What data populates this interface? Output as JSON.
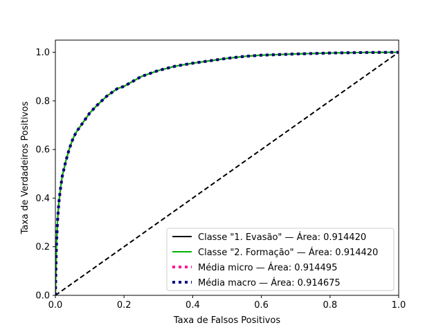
{
  "chart_data": {
    "type": "line",
    "title": "",
    "xlabel": "Taxa de Falsos Positivos",
    "ylabel": "Taxa de Verdadeiros Positivos",
    "xlim": [
      0.0,
      1.0
    ],
    "ylim": [
      0.0,
      1.05
    ],
    "xticks": [
      "0.0",
      "0.2",
      "0.4",
      "0.6",
      "0.8",
      "1.0"
    ],
    "yticks": [
      "0.0",
      "0.2",
      "0.4",
      "0.6",
      "0.8",
      "1.0"
    ],
    "grid": false,
    "legend_position": "lower-right",
    "series": [
      {
        "name": "Classe \"1. Evasão\" — Área: 0.914420",
        "color": "#000000",
        "style": "solid",
        "x": [
          0.0,
          0.003,
          0.006,
          0.01,
          0.015,
          0.02,
          0.03,
          0.04,
          0.05,
          0.06,
          0.08,
          0.1,
          0.12,
          0.15,
          0.18,
          0.2,
          0.25,
          0.3,
          0.35,
          0.4,
          0.45,
          0.5,
          0.55,
          0.6,
          0.7,
          0.8,
          0.9,
          1.0
        ],
        "y": [
          0.0,
          0.2,
          0.3,
          0.38,
          0.44,
          0.49,
          0.55,
          0.6,
          0.64,
          0.67,
          0.71,
          0.75,
          0.78,
          0.82,
          0.85,
          0.86,
          0.9,
          0.925,
          0.943,
          0.955,
          0.965,
          0.975,
          0.983,
          0.988,
          0.993,
          0.997,
          0.999,
          1.0
        ]
      },
      {
        "name": "Classe \"2. Formação\" — Área: 0.914420",
        "color": "#00b300",
        "style": "solid",
        "x": [
          0.0,
          0.003,
          0.006,
          0.01,
          0.015,
          0.02,
          0.03,
          0.04,
          0.05,
          0.06,
          0.08,
          0.1,
          0.12,
          0.15,
          0.18,
          0.2,
          0.25,
          0.3,
          0.35,
          0.4,
          0.45,
          0.5,
          0.55,
          0.6,
          0.7,
          0.8,
          0.9,
          1.0
        ],
        "y": [
          0.0,
          0.2,
          0.3,
          0.38,
          0.44,
          0.49,
          0.55,
          0.6,
          0.64,
          0.67,
          0.71,
          0.75,
          0.78,
          0.82,
          0.85,
          0.86,
          0.9,
          0.925,
          0.943,
          0.955,
          0.965,
          0.975,
          0.983,
          0.988,
          0.993,
          0.997,
          0.999,
          1.0
        ]
      },
      {
        "name": "Média micro — Área: 0.914495",
        "color": "#ff1493",
        "style": "dotted",
        "x": [
          0.0,
          0.003,
          0.006,
          0.01,
          0.015,
          0.02,
          0.03,
          0.04,
          0.05,
          0.06,
          0.08,
          0.1,
          0.12,
          0.15,
          0.18,
          0.2,
          0.25,
          0.3,
          0.35,
          0.4,
          0.45,
          0.5,
          0.55,
          0.6,
          0.7,
          0.8,
          0.9,
          1.0
        ],
        "y": [
          0.0,
          0.2,
          0.3,
          0.38,
          0.44,
          0.49,
          0.55,
          0.6,
          0.64,
          0.67,
          0.71,
          0.75,
          0.78,
          0.82,
          0.85,
          0.86,
          0.9,
          0.925,
          0.943,
          0.955,
          0.965,
          0.975,
          0.983,
          0.988,
          0.993,
          0.997,
          0.999,
          1.0
        ]
      },
      {
        "name": "Média macro — Área: 0.914675",
        "color": "#000080",
        "style": "dotted",
        "x": [
          0.0,
          0.003,
          0.006,
          0.01,
          0.015,
          0.02,
          0.03,
          0.04,
          0.05,
          0.06,
          0.08,
          0.1,
          0.12,
          0.15,
          0.18,
          0.2,
          0.25,
          0.3,
          0.35,
          0.4,
          0.45,
          0.5,
          0.55,
          0.6,
          0.7,
          0.8,
          0.9,
          1.0
        ],
        "y": [
          0.0,
          0.2,
          0.3,
          0.38,
          0.44,
          0.49,
          0.55,
          0.6,
          0.64,
          0.67,
          0.71,
          0.75,
          0.78,
          0.82,
          0.85,
          0.86,
          0.9,
          0.925,
          0.943,
          0.955,
          0.965,
          0.975,
          0.983,
          0.988,
          0.993,
          0.997,
          0.999,
          1.0
        ]
      }
    ],
    "reference_line": {
      "x": [
        0.0,
        1.0
      ],
      "y": [
        0.0,
        1.0
      ],
      "color": "#000000",
      "style": "dashed"
    }
  }
}
